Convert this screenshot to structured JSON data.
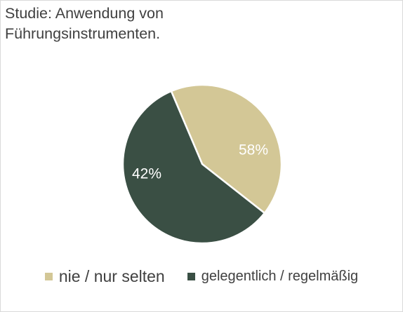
{
  "chart_data": {
    "type": "pie",
    "title_lines": [
      "Studie: Anwendung von",
      "Führungsinstrumenten."
    ],
    "slices": [
      {
        "label": "nie / nur selten",
        "value": 42,
        "display": "42%",
        "color": "#d3c796"
      },
      {
        "label": "gelegentlich / regelmäßig",
        "value": 58,
        "display": "58%",
        "color": "#3a4f44"
      }
    ],
    "legend_position": "bottom",
    "label_color": "#ffffff"
  }
}
